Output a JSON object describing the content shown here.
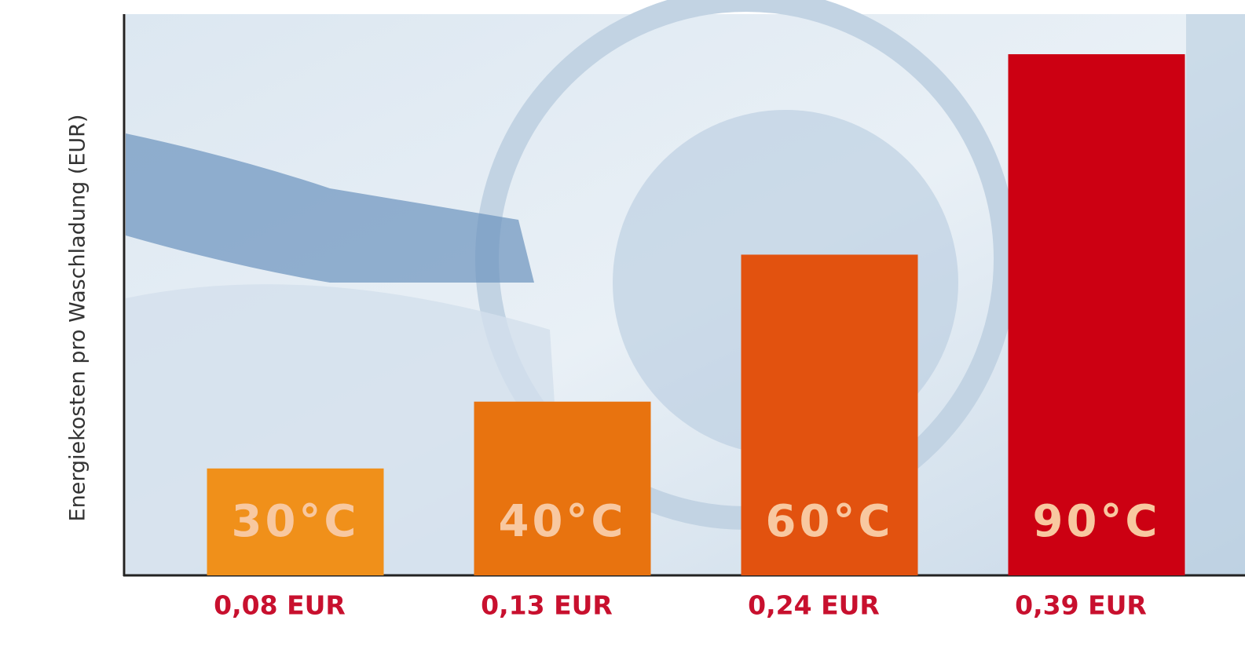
{
  "chart_data": {
    "type": "bar",
    "y_label": "Energiekosten pro Waschladung (EUR)",
    "categories": [
      "30°C",
      "40°C",
      "60°C",
      "90°C"
    ],
    "values": [
      0.08,
      0.13,
      0.24,
      0.39
    ],
    "value_labels": [
      "0,08 EUR",
      "0,13 EUR",
      "0,24 EUR",
      "0,39 EUR"
    ],
    "colors": [
      "#f0901a",
      "#e8730f",
      "#e2520f",
      "#cc0012"
    ],
    "ylim": [
      0,
      0.42
    ]
  }
}
